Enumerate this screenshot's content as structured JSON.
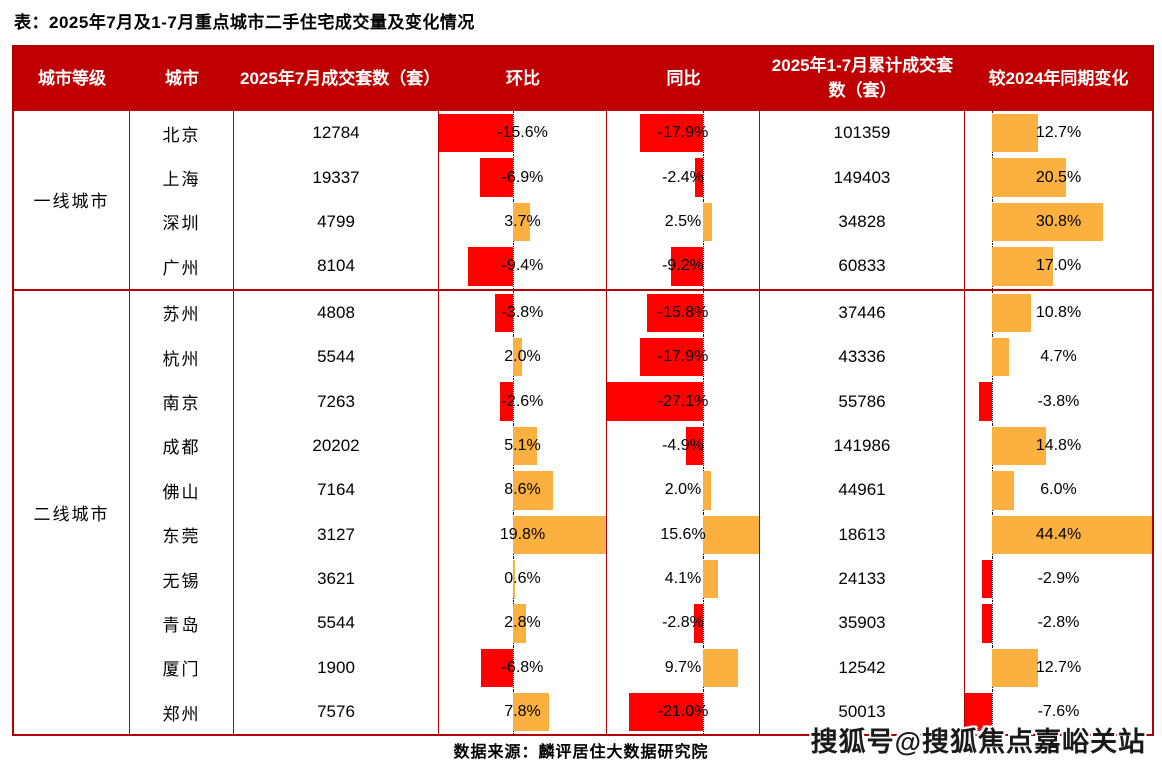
{
  "title": "表：2025年7月及1-7月重点城市二手住宅成交量及变化情况",
  "source": "数据来源：麟评居住大数据研究院",
  "watermark": "搜狐号@搜狐焦点嘉峪关站",
  "colors": {
    "header_bg": "#c00000",
    "border": "#b00000",
    "negative_bar": "#fe0000",
    "positive_bar": "#fbb040"
  },
  "header": {
    "tier": "城市等级",
    "city": "城市",
    "july_volume": "2025年7月成交套数（套）",
    "mom": "环比",
    "yoy": "同比",
    "cumulative_volume": "2025年1-7月累计成交套数（套）",
    "vs2024": "较2024年同期变化"
  },
  "bar_axes": {
    "mom": {
      "min": -15.6,
      "max": 19.8
    },
    "yoy": {
      "min": -27.1,
      "max": 15.6
    },
    "vs2024": {
      "min": -7.6,
      "max": 44.4
    }
  },
  "tiers": [
    {
      "label": "一线城市",
      "rows": [
        {
          "city": "北京",
          "jul": 12784,
          "mom": -15.6,
          "yoy": -17.9,
          "cum": 101359,
          "vs2024": 12.7
        },
        {
          "city": "上海",
          "jul": 19337,
          "mom": -6.9,
          "yoy": -2.4,
          "cum": 149403,
          "vs2024": 20.5
        },
        {
          "city": "深圳",
          "jul": 4799,
          "mom": 3.7,
          "yoy": 2.5,
          "cum": 34828,
          "vs2024": 30.8
        },
        {
          "city": "广州",
          "jul": 8104,
          "mom": -9.4,
          "yoy": -9.2,
          "cum": 60833,
          "vs2024": 17.0
        }
      ]
    },
    {
      "label": "二线城市",
      "rows": [
        {
          "city": "苏州",
          "jul": 4808,
          "mom": -3.8,
          "yoy": -15.8,
          "cum": 37446,
          "vs2024": 10.8
        },
        {
          "city": "杭州",
          "jul": 5544,
          "mom": 2.0,
          "yoy": -17.9,
          "cum": 43336,
          "vs2024": 4.7
        },
        {
          "city": "南京",
          "jul": 7263,
          "mom": -2.6,
          "yoy": -27.1,
          "cum": 55786,
          "vs2024": -3.8
        },
        {
          "city": "成都",
          "jul": 20202,
          "mom": 5.1,
          "yoy": -4.9,
          "cum": 141986,
          "vs2024": 14.8
        },
        {
          "city": "佛山",
          "jul": 7164,
          "mom": 8.6,
          "yoy": 2.0,
          "cum": 44961,
          "vs2024": 6.0
        },
        {
          "city": "东莞",
          "jul": 3127,
          "mom": 19.8,
          "yoy": 15.6,
          "cum": 18613,
          "vs2024": 44.4
        },
        {
          "city": "无锡",
          "jul": 3621,
          "mom": 0.6,
          "yoy": 4.1,
          "cum": 24133,
          "vs2024": -2.9
        },
        {
          "city": "青岛",
          "jul": 5544,
          "mom": 2.8,
          "yoy": -2.8,
          "cum": 35903,
          "vs2024": -2.8
        },
        {
          "city": "厦门",
          "jul": 1900,
          "mom": -6.8,
          "yoy": 9.7,
          "cum": 12542,
          "vs2024": 12.7
        },
        {
          "city": "郑州",
          "jul": 7576,
          "mom": 7.8,
          "yoy": -21.0,
          "cum": 50013,
          "vs2024": -7.6
        }
      ]
    }
  ],
  "chart_data": {
    "type": "table",
    "title": "表：2025年7月及1-7月重点城市二手住宅成交量及变化情况",
    "columns": [
      "城市等级",
      "城市",
      "2025年7月成交套数（套）",
      "环比",
      "同比",
      "2025年1-7月累计成交套数（套）",
      "较2024年同期变化"
    ],
    "bar_columns": [
      "环比",
      "同比",
      "较2024年同期变化"
    ],
    "bar_style": {
      "negative": "red bar left of dotted zero line",
      "positive": "orange bar right of dotted zero line"
    },
    "rows": [
      [
        "一线城市",
        "北京",
        12784,
        "-15.6%",
        "-17.9%",
        101359,
        "12.7%"
      ],
      [
        "一线城市",
        "上海",
        19337,
        "-6.9%",
        "-2.4%",
        149403,
        "20.5%"
      ],
      [
        "一线城市",
        "深圳",
        4799,
        "3.7%",
        "2.5%",
        34828,
        "30.8%"
      ],
      [
        "一线城市",
        "广州",
        8104,
        "-9.4%",
        "-9.2%",
        60833,
        "17.0%"
      ],
      [
        "二线城市",
        "苏州",
        4808,
        "-3.8%",
        "-15.8%",
        37446,
        "10.8%"
      ],
      [
        "二线城市",
        "杭州",
        5544,
        "2.0%",
        "-17.9%",
        43336,
        "4.7%"
      ],
      [
        "二线城市",
        "南京",
        7263,
        "-2.6%",
        "-27.1%",
        55786,
        "-3.8%"
      ],
      [
        "二线城市",
        "成都",
        20202,
        "5.1%",
        "-4.9%",
        141986,
        "14.8%"
      ],
      [
        "二线城市",
        "佛山",
        7164,
        "8.6%",
        "2.0%",
        44961,
        "6.0%"
      ],
      [
        "二线城市",
        "东莞",
        3127,
        "19.8%",
        "15.6%",
        18613,
        "44.4%"
      ],
      [
        "二线城市",
        "无锡",
        3621,
        "0.6%",
        "4.1%",
        24133,
        "-2.9%"
      ],
      [
        "二线城市",
        "青岛",
        5544,
        "2.8%",
        "-2.8%",
        35903,
        "-2.8%"
      ],
      [
        "二线城市",
        "厦门",
        1900,
        "-6.8%",
        "9.7%",
        12542,
        "12.7%"
      ],
      [
        "二线城市",
        "郑州",
        7576,
        "7.8%",
        "-21.0%",
        50013,
        "-7.6%"
      ]
    ],
    "source": "数据来源：麟评居住大数据研究院"
  }
}
